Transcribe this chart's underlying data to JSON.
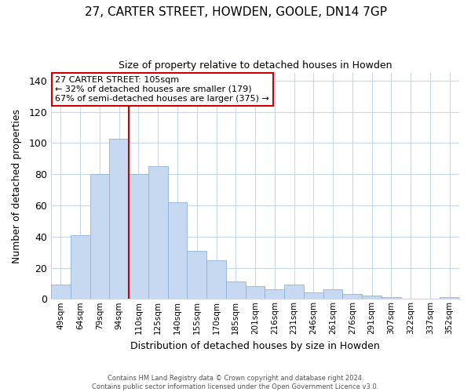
{
  "title": "27, CARTER STREET, HOWDEN, GOOLE, DN14 7GP",
  "subtitle": "Size of property relative to detached houses in Howden",
  "xlabel": "Distribution of detached houses by size in Howden",
  "ylabel": "Number of detached properties",
  "bar_labels": [
    "49sqm",
    "64sqm",
    "79sqm",
    "94sqm",
    "110sqm",
    "125sqm",
    "140sqm",
    "155sqm",
    "170sqm",
    "185sqm",
    "201sqm",
    "216sqm",
    "231sqm",
    "246sqm",
    "261sqm",
    "276sqm",
    "291sqm",
    "307sqm",
    "322sqm",
    "337sqm",
    "352sqm"
  ],
  "bar_values": [
    9,
    41,
    80,
    103,
    80,
    85,
    62,
    31,
    25,
    11,
    8,
    6,
    9,
    4,
    6,
    3,
    2,
    1,
    0,
    0,
    1
  ],
  "bar_color": "#c6d9f0",
  "bar_edge_color": "#8eb4d8",
  "vline_color": "#cc0000",
  "ylim": [
    0,
    145
  ],
  "yticks": [
    0,
    20,
    40,
    60,
    80,
    100,
    120,
    140
  ],
  "annotation_text": "27 CARTER STREET: 105sqm\n← 32% of detached houses are smaller (179)\n67% of semi-detached houses are larger (375) →",
  "annotation_box_color": "#ffffff",
  "annotation_box_edge_color": "#cc0000",
  "footer_line1": "Contains HM Land Registry data © Crown copyright and database right 2024.",
  "footer_line2": "Contains public sector information licensed under the Open Government Licence v3.0.",
  "background_color": "#ffffff",
  "grid_color": "#c8d8e8"
}
